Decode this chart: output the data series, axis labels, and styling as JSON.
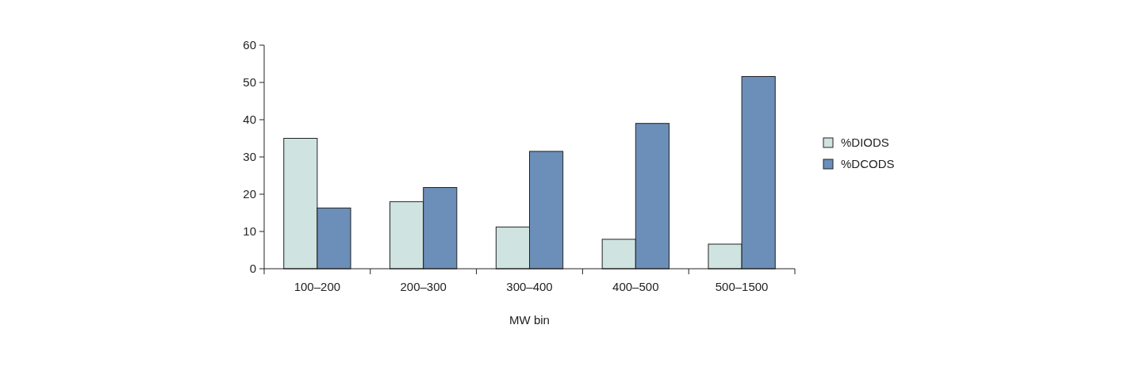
{
  "chart_data": {
    "type": "bar",
    "xlabel": "MW bin",
    "categories": [
      "100–200",
      "200–300",
      "300–400",
      "400–500",
      "500–1500"
    ],
    "series": [
      {
        "name": "%DIODS",
        "color": "#cfe3e0",
        "values": [
          35,
          18,
          11.2,
          7.9,
          6.6
        ]
      },
      {
        "name": "%DCODS",
        "color": "#6b8fb8",
        "values": [
          16.3,
          21.8,
          31.5,
          39,
          51.6
        ]
      }
    ],
    "ylim": [
      0,
      60
    ],
    "yticks": [
      0,
      10,
      20,
      30,
      40,
      50,
      60
    ],
    "grid": false,
    "legend": "right"
  }
}
